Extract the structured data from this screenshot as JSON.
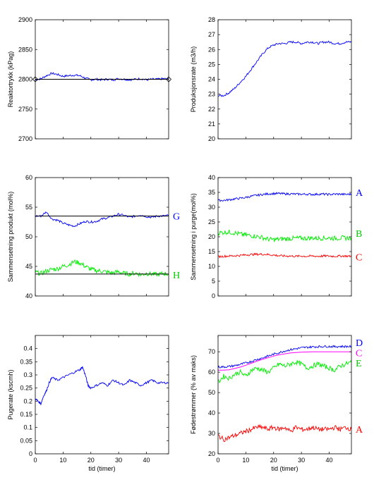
{
  "chart_data": [
    {
      "type": "line",
      "ylabel": "Reaktortrykk (kPag)",
      "xlabel": "",
      "ylim": [
        2700,
        2900
      ],
      "yticks": [
        "2700",
        "2750",
        "2800",
        "2850",
        "2900"
      ],
      "xlim": [
        0,
        48
      ],
      "xticks": [],
      "series": [
        {
          "color": "#0000ff",
          "x": [
            0,
            2,
            4,
            6,
            8,
            10,
            12,
            14,
            16,
            18,
            20,
            22,
            24,
            26,
            28,
            30,
            32,
            34,
            36,
            38,
            40,
            42,
            44,
            46,
            48
          ],
          "values": [
            2799,
            2801,
            2806,
            2810,
            2808,
            2805,
            2806,
            2807,
            2806,
            2802,
            2799,
            2800,
            2799,
            2800,
            2799,
            2801,
            2800,
            2799,
            2800,
            2801,
            2799,
            2800,
            2800,
            2801,
            2800
          ]
        },
        {
          "color": "#000000",
          "x": [
            0,
            48
          ],
          "values": [
            2800,
            2800
          ]
        }
      ],
      "markers": [
        {
          "x": 0,
          "y": 2800,
          "shape": "diamond"
        },
        {
          "x": 48,
          "y": 2800,
          "shape": "diamond"
        }
      ],
      "labels": []
    },
    {
      "type": "line",
      "ylabel": "Produksjonsrate (m3/h)",
      "xlabel": "",
      "ylim": [
        20,
        28
      ],
      "yticks": [
        "20",
        "21",
        "22",
        "23",
        "24",
        "25",
        "26",
        "27",
        "28"
      ],
      "xlim": [
        0,
        48
      ],
      "xticks": [],
      "series": [
        {
          "color": "#0000ff",
          "x": [
            0,
            2,
            4,
            6,
            8,
            10,
            12,
            14,
            16,
            18,
            20,
            22,
            24,
            26,
            28,
            30,
            32,
            34,
            36,
            38,
            40,
            42,
            44,
            46,
            48
          ],
          "values": [
            22.9,
            22.9,
            23.1,
            23.4,
            23.8,
            24.2,
            24.7,
            25.2,
            25.7,
            26.1,
            26.3,
            26.4,
            26.4,
            26.5,
            26.5,
            26.4,
            26.5,
            26.5,
            26.4,
            26.5,
            26.5,
            26.4,
            26.4,
            26.5,
            26.5
          ]
        }
      ],
      "labels": []
    },
    {
      "type": "line",
      "ylabel": "Sammensetning produkt (mol%)",
      "xlabel": "",
      "ylim": [
        40,
        60
      ],
      "yticks": [
        "40",
        "45",
        "50",
        "55",
        "60"
      ],
      "xlim": [
        0,
        48
      ],
      "xticks": [],
      "series": [
        {
          "color": "#0000ff",
          "x": [
            0,
            2,
            4,
            6,
            8,
            10,
            12,
            14,
            16,
            18,
            20,
            22,
            24,
            26,
            28,
            30,
            32,
            34,
            36,
            38,
            40,
            42,
            44,
            46,
            48
          ],
          "values": [
            53.5,
            53.5,
            54.2,
            53.0,
            52.8,
            52.3,
            52.0,
            51.8,
            52.2,
            52.6,
            52.5,
            52.6,
            53.0,
            53.2,
            53.5,
            53.8,
            53.6,
            53.3,
            53.5,
            53.7,
            53.4,
            53.3,
            53.5,
            53.5,
            53.6
          ]
        },
        {
          "color": "#000000",
          "x": [
            0,
            48
          ],
          "values": [
            53.5,
            53.5
          ]
        },
        {
          "color": "#00ee00",
          "x": [
            0,
            2,
            4,
            6,
            8,
            10,
            12,
            14,
            16,
            18,
            20,
            22,
            24,
            26,
            28,
            30,
            32,
            34,
            36,
            38,
            40,
            42,
            44,
            46,
            48
          ],
          "values": [
            44.0,
            43.8,
            44.2,
            44.5,
            44.6,
            45.0,
            45.3,
            45.8,
            45.6,
            45.0,
            44.5,
            44.3,
            44.2,
            44.0,
            43.9,
            44.1,
            43.8,
            43.7,
            43.9,
            43.6,
            43.8,
            43.7,
            43.6,
            43.8,
            43.7
          ]
        },
        {
          "color": "#000000",
          "x": [
            0,
            48
          ],
          "values": [
            43.7,
            43.7
          ]
        }
      ],
      "labels": [
        {
          "text": "G",
          "color": "#0000ff",
          "y": 53.5
        },
        {
          "text": "H",
          "color": "#00cc00",
          "y": 43.6
        }
      ]
    },
    {
      "type": "line",
      "ylabel": "Sammensetning i purge(mol%)",
      "xlabel": "",
      "ylim": [
        0,
        40
      ],
      "yticks": [
        "0",
        "5",
        "10",
        "15",
        "20",
        "25",
        "30",
        "35",
        "40"
      ],
      "xlim": [
        0,
        48
      ],
      "xticks": [],
      "series": [
        {
          "color": "#0000ff",
          "x": [
            0,
            2,
            4,
            6,
            8,
            10,
            12,
            14,
            16,
            18,
            20,
            22,
            24,
            26,
            28,
            30,
            32,
            34,
            36,
            38,
            40,
            42,
            44,
            46,
            48
          ],
          "values": [
            32.3,
            32.3,
            32.5,
            32.8,
            33.0,
            33.3,
            33.7,
            34.0,
            34.3,
            34.5,
            34.6,
            34.6,
            34.5,
            34.5,
            34.4,
            34.4,
            34.4,
            34.3,
            34.4,
            34.4,
            34.3,
            34.4,
            34.4,
            34.3,
            34.4
          ]
        },
        {
          "color": "#00ee00",
          "x": [
            0,
            2,
            4,
            6,
            8,
            10,
            12,
            14,
            16,
            18,
            20,
            22,
            24,
            26,
            28,
            30,
            32,
            34,
            36,
            38,
            40,
            42,
            44,
            46,
            48
          ],
          "values": [
            21.3,
            21.5,
            21.6,
            21.3,
            20.9,
            20.6,
            20.4,
            20.1,
            19.7,
            19.2,
            19.0,
            19.2,
            19.3,
            19.4,
            19.5,
            19.5,
            19.5,
            19.6,
            19.5,
            19.6,
            19.6,
            19.5,
            19.6,
            19.6,
            19.6
          ]
        },
        {
          "color": "#ff0000",
          "x": [
            0,
            2,
            4,
            6,
            8,
            10,
            12,
            14,
            16,
            18,
            20,
            22,
            24,
            26,
            28,
            30,
            32,
            34,
            36,
            38,
            40,
            42,
            44,
            46,
            48
          ],
          "values": [
            13.3,
            13.4,
            13.5,
            13.6,
            13.7,
            13.9,
            14.0,
            14.1,
            14.1,
            14.0,
            13.8,
            13.6,
            13.5,
            13.5,
            13.4,
            13.5,
            13.4,
            13.5,
            13.4,
            13.5,
            13.5,
            13.4,
            13.5,
            13.5,
            13.4
          ]
        }
      ],
      "labels": [
        {
          "text": "A",
          "color": "#0000ff",
          "y": 35
        },
        {
          "text": "B",
          "color": "#00cc00",
          "y": 21.2
        },
        {
          "text": "C",
          "color": "#ff0000",
          "y": 13.2
        }
      ]
    },
    {
      "type": "line",
      "ylabel": "Pugerate (kscmh)",
      "xlabel": "tid (timer)",
      "ylim": [
        0,
        0.45
      ],
      "yticks": [
        "0",
        "0.05",
        "0.1",
        "0.15",
        "0.2",
        "0.25",
        "0.3",
        "0.35",
        "0.4"
      ],
      "xlim": [
        0,
        48
      ],
      "xticks": [
        "0",
        "10",
        "20",
        "30",
        "40"
      ],
      "series": [
        {
          "color": "#0000ff",
          "x": [
            0,
            1,
            2,
            3,
            4,
            5,
            6,
            8,
            10,
            12,
            14,
            16,
            17,
            18,
            19,
            20,
            22,
            24,
            26,
            28,
            30,
            32,
            34,
            36,
            38,
            40,
            42,
            44,
            46,
            48
          ],
          "values": [
            0.21,
            0.2,
            0.19,
            0.22,
            0.24,
            0.27,
            0.29,
            0.28,
            0.29,
            0.3,
            0.31,
            0.32,
            0.33,
            0.3,
            0.26,
            0.25,
            0.26,
            0.27,
            0.26,
            0.28,
            0.27,
            0.26,
            0.28,
            0.27,
            0.26,
            0.27,
            0.28,
            0.27,
            0.27,
            0.27
          ]
        }
      ],
      "labels": []
    },
    {
      "type": "line",
      "ylabel": "Fødestrømmer (% av maks)",
      "xlabel": "tid (timer)",
      "ylim": [
        20,
        78
      ],
      "yticks": [
        "20",
        "30",
        "40",
        "50",
        "60",
        "70"
      ],
      "xlim": [
        0,
        48
      ],
      "xticks": [
        "0",
        "10",
        "20",
        "30",
        "40"
      ],
      "series": [
        {
          "color": "#0000ff",
          "x": [
            0,
            2,
            4,
            6,
            8,
            10,
            12,
            14,
            16,
            18,
            20,
            22,
            24,
            26,
            28,
            30,
            32,
            34,
            36,
            38,
            40,
            42,
            44,
            46,
            48
          ],
          "values": [
            62.5,
            62.6,
            62.8,
            63.2,
            63.8,
            64.5,
            65.3,
            66.2,
            67.0,
            67.9,
            68.8,
            69.6,
            70.4,
            71.0,
            71.5,
            71.9,
            72.2,
            72.4,
            72.5,
            72.6,
            72.6,
            72.5,
            72.6,
            72.6,
            72.6
          ]
        },
        {
          "color": "#ff00ff",
          "x": [
            0,
            2,
            4,
            6,
            8,
            10,
            12,
            14,
            16,
            18,
            20,
            22,
            24,
            26,
            28,
            30,
            32,
            34,
            36,
            38,
            40,
            42,
            44,
            46,
            48
          ],
          "values": [
            61.0,
            61.0,
            61.2,
            61.8,
            62.5,
            63.4,
            64.4,
            65.4,
            66.3,
            67.1,
            67.9,
            68.5,
            69.0,
            69.4,
            69.6,
            69.8,
            69.9,
            70.0,
            70.0,
            70.0,
            70.0,
            70.0,
            70.0,
            70.0,
            70.0
          ]
        },
        {
          "color": "#00ee00",
          "x": [
            0,
            2,
            4,
            6,
            8,
            10,
            12,
            14,
            16,
            18,
            20,
            22,
            24,
            26,
            28,
            30,
            32,
            34,
            36,
            38,
            40,
            42,
            44,
            46,
            48
          ],
          "values": [
            55,
            58,
            57,
            59,
            60,
            58,
            61,
            62,
            61,
            60,
            62,
            64,
            63,
            64,
            65,
            64,
            62,
            63,
            64,
            63,
            62,
            61,
            63,
            64,
            65
          ]
        },
        {
          "color": "#ff0000",
          "x": [
            0,
            2,
            4,
            6,
            8,
            10,
            12,
            14,
            16,
            18,
            20,
            22,
            24,
            26,
            28,
            30,
            32,
            34,
            36,
            38,
            40,
            42,
            44,
            46,
            48
          ],
          "values": [
            29,
            27,
            28,
            29,
            30,
            31,
            32,
            33,
            33,
            32,
            33,
            32,
            33,
            31,
            33,
            32,
            32,
            33,
            32,
            32,
            32,
            33,
            32,
            33,
            32
          ]
        }
      ],
      "labels": [
        {
          "text": "D",
          "color": "#0000ff",
          "y": 74.5
        },
        {
          "text": "C",
          "color": "#ff00ff",
          "y": 69.5
        },
        {
          "text": "E",
          "color": "#00cc00",
          "y": 64.5
        },
        {
          "text": "A",
          "color": "#ff0000",
          "y": 32
        }
      ]
    }
  ]
}
